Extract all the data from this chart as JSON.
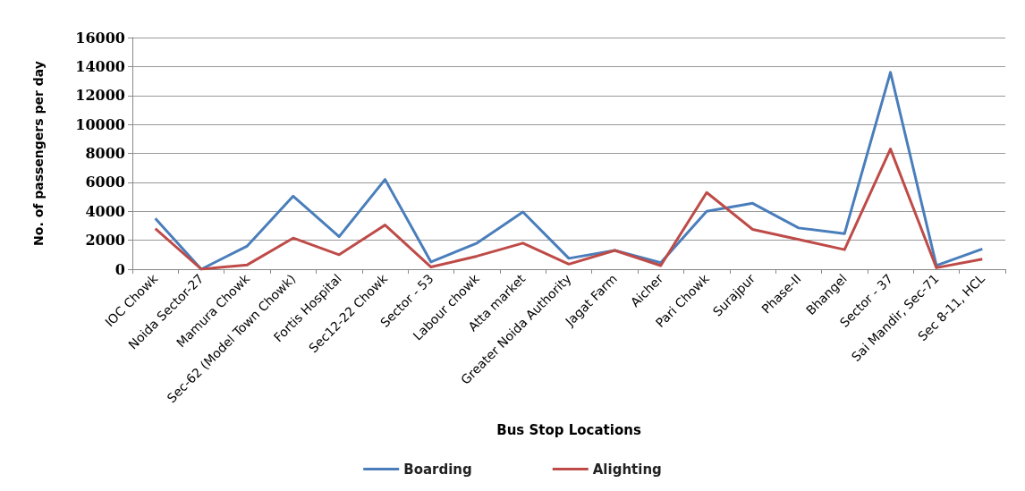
{
  "chart_data": {
    "type": "line",
    "xlabel": "Bus Stop Locations",
    "ylabel": "No. of passengers per day",
    "categories": [
      "IOC Chowk",
      "Noida Sector-27",
      "Mamura Chowk",
      "Sec-62 (Model Town Chowk)",
      "Fortis Hospital",
      "Sec12-22 Chowk",
      "Sector - 53",
      "Labour chowk",
      "Atta market",
      "Greater Noida Authority",
      "Jagat Farm",
      "Aicher",
      "Pari Chowk",
      "Surajpur",
      "Phase-II",
      "Bhangel",
      "Sector - 37",
      "Sai Mandir, Sec-71",
      "Sec 8-11, HCL"
    ],
    "series": [
      {
        "name": "Boarding",
        "color": "#4a7ebb",
        "values": [
          3500,
          0,
          1600,
          5050,
          2250,
          6200,
          500,
          1800,
          3950,
          750,
          1300,
          450,
          4000,
          4550,
          2850,
          2450,
          13600,
          250,
          1400
        ]
      },
      {
        "name": "Alighting",
        "color": "#be4b48",
        "values": [
          2800,
          0,
          300,
          2150,
          1000,
          3050,
          150,
          900,
          1800,
          350,
          1300,
          250,
          5300,
          2750,
          2050,
          1350,
          8300,
          100,
          700
        ]
      }
    ],
    "ylim": [
      0,
      16000
    ],
    "yticks": [
      0,
      2000,
      4000,
      6000,
      8000,
      10000,
      12000,
      14000,
      16000
    ],
    "grid": "y",
    "legend": "bottom",
    "marker": "none",
    "line_style": "solid"
  }
}
